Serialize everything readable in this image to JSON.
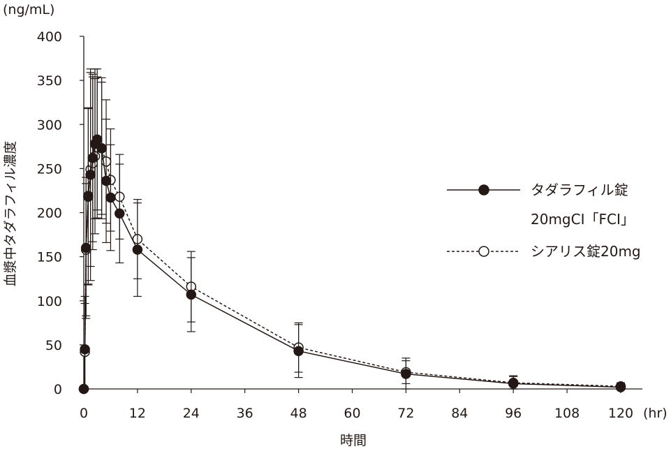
{
  "chart_data": {
    "type": "line",
    "title": "",
    "xlabel": "時間",
    "x_unit": "(hr)",
    "ylabel": "血漿中タダラフィル濃度",
    "y_unit": "(ng/mL)",
    "xlim": [
      0,
      120
    ],
    "ylim": [
      0,
      400
    ],
    "xticks": [
      0,
      12,
      24,
      36,
      48,
      60,
      72,
      84,
      96,
      108,
      120
    ],
    "yticks": [
      0,
      50,
      100,
      150,
      200,
      250,
      300,
      350,
      400
    ],
    "grid": false,
    "legend_position": "right",
    "series": [
      {
        "name": "タダラフィル錠20mgCI「FCI」",
        "marker": "filled-circle",
        "line": "solid",
        "x": [
          0,
          0.25,
          0.5,
          1,
          1.5,
          2,
          2.5,
          3,
          4,
          5,
          6,
          8,
          12,
          24,
          48,
          72,
          96,
          120
        ],
        "y": [
          0,
          45,
          160,
          218,
          243,
          262,
          278,
          283,
          273,
          236,
          217,
          199,
          158,
          107,
          43,
          17,
          6,
          2
        ],
        "err": [
          0,
          60,
          80,
          100,
          120,
          95,
          85,
          80,
          80,
          70,
          60,
          56,
          53,
          42,
          30,
          18,
          9,
          4
        ]
      },
      {
        "name": "シアリス錠20mg",
        "marker": "open-circle",
        "line": "dashed",
        "x": [
          0,
          0.25,
          0.5,
          1,
          1.5,
          2,
          2.5,
          3,
          4,
          5,
          6,
          8,
          12,
          24,
          48,
          72,
          96,
          120
        ],
        "y": [
          0,
          42,
          158,
          219,
          249,
          256,
          264,
          274,
          273,
          258,
          237,
          218,
          170,
          116,
          47,
          19,
          7,
          3
        ],
        "err": [
          0,
          55,
          75,
          100,
          110,
          98,
          88,
          80,
          75,
          70,
          58,
          48,
          45,
          40,
          28,
          13,
          7,
          4
        ]
      }
    ],
    "legend": {
      "entries": [
        {
          "line1": "タダラフィル錠",
          "line2": "20mgCI「FCI」"
        },
        {
          "line1": "シアリス錠20mg",
          "line2": ""
        }
      ]
    }
  }
}
